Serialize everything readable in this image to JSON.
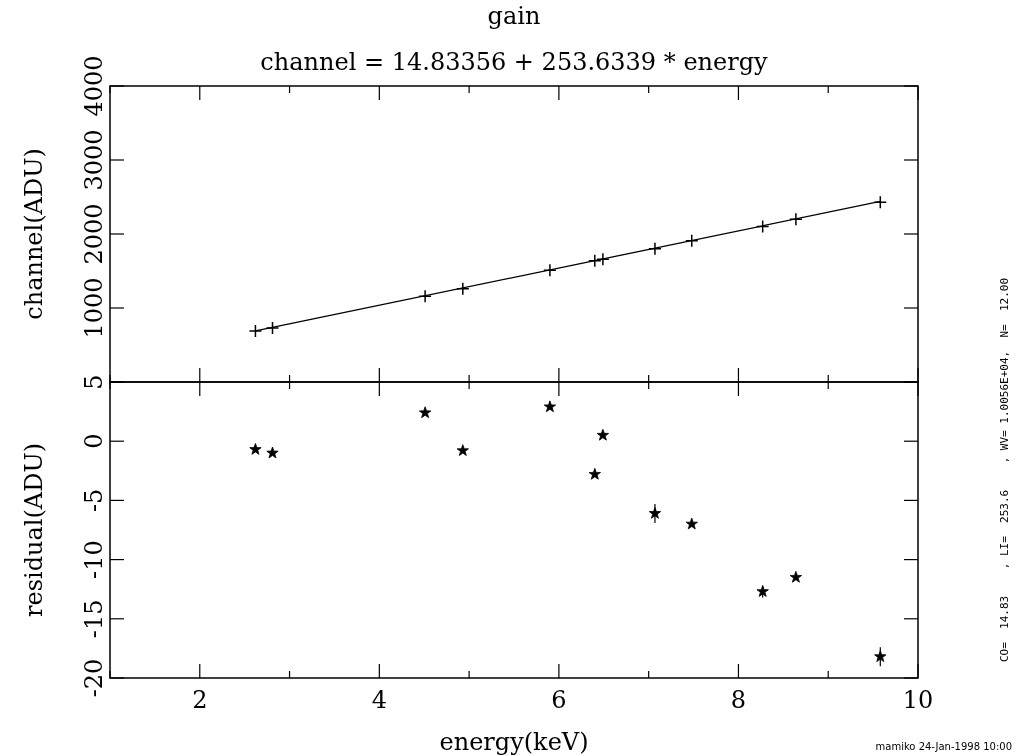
{
  "chart_data": [
    {
      "type": "scatter",
      "title": "gain",
      "subtitle": "channel = 14.83356 + 253.6339 * energy",
      "ylabel": "channel(ADU)",
      "xlim": [
        1,
        10
      ],
      "xticks": [
        {
          "value": 1,
          "label": null
        },
        2,
        {
          "value": 3,
          "label": null
        },
        4,
        {
          "value": 5,
          "label": null
        },
        6,
        {
          "value": 7,
          "label": null
        },
        8,
        {
          "value": 9,
          "label": null
        },
        10
      ],
      "ylim": [
        0,
        4000
      ],
      "yticks": [
        {
          "value": 0,
          "label": null
        },
        1000,
        2000,
        3000,
        4000
      ],
      "tick_labels": "y",
      "grid": false,
      "series": [
        {
          "type": "scatter",
          "color": "#000000",
          "marker": "cross",
          "x": [
            2.62,
            2.81,
            4.51,
            4.93,
            5.9,
            6.4,
            6.49,
            7.07,
            7.48,
            8.27,
            8.64,
            9.58
          ],
          "values": [
            690,
            730,
            1160,
            1260,
            1510,
            1640,
            1660,
            1800,
            1910,
            2100,
            2200,
            2430
          ]
        },
        {
          "type": "line",
          "color": "#000000",
          "line_style": "solid",
          "marker": "none",
          "x": [
            2.62,
            9.58
          ],
          "values": [
            690,
            2440
          ]
        }
      ]
    },
    {
      "type": "scatter",
      "xlabel": "energy(keV)",
      "ylabel": "residual(ADU)",
      "xlim": [
        1,
        10
      ],
      "xticks": [
        {
          "value": 1,
          "label": null
        },
        2,
        {
          "value": 3,
          "label": null
        },
        4,
        {
          "value": 5,
          "label": null
        },
        6,
        {
          "value": 7,
          "label": null
        },
        8,
        {
          "value": 9,
          "label": null
        },
        10
      ],
      "ylim": [
        -20,
        5
      ],
      "yticks": [
        -20,
        -15,
        -10,
        -5,
        0,
        5
      ],
      "grid": false,
      "annotations": [
        "CO=  14.83    , LI=  253.6    , WV= 1.0056E+04,  N=  12.00",
        "mamiko 24-Jan-1998 10:00"
      ],
      "series": [
        {
          "type": "scatter",
          "color": "#000000",
          "marker": "star",
          "x": [
            2.62,
            2.81,
            4.51,
            4.93,
            5.9,
            6.4,
            6.49,
            7.07,
            7.48,
            8.27,
            8.64,
            9.58
          ],
          "values": [
            -0.7,
            -1.0,
            2.4,
            -0.8,
            2.9,
            -2.8,
            0.5,
            -6.1,
            -7.0,
            -12.7,
            -11.5,
            -18.2
          ],
          "errors": [
            null,
            null,
            null,
            null,
            null,
            null,
            null,
            0.8,
            null,
            0.5,
            null,
            0.8
          ]
        }
      ]
    }
  ]
}
